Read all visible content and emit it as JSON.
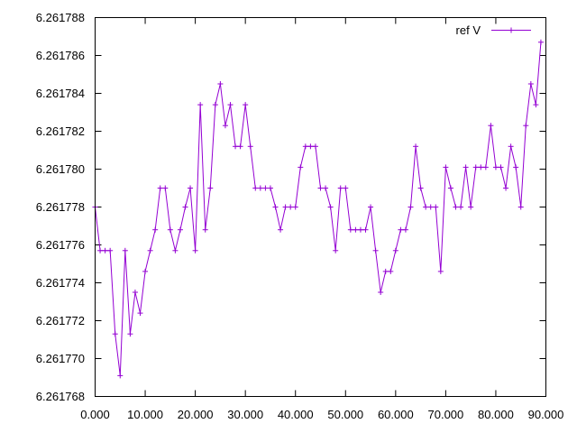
{
  "chart_data": {
    "type": "line",
    "title": "",
    "xlabel": "",
    "ylabel": "",
    "xlim": [
      0,
      90
    ],
    "ylim": [
      6.261768,
      6.261788
    ],
    "x_ticks": [
      "0.000",
      "10.000",
      "20.000",
      "30.000",
      "40.000",
      "50.000",
      "60.000",
      "70.000",
      "80.000",
      "90.000"
    ],
    "y_ticks": [
      "6.261768",
      "6.261770",
      "6.261772",
      "6.261774",
      "6.261776",
      "6.261778",
      "6.261780",
      "6.261782",
      "6.261784",
      "6.261786",
      "6.261788"
    ],
    "grid": false,
    "legend": {
      "position": "top-right"
    },
    "series": [
      {
        "name": "ref V",
        "color": "#9400d3",
        "marker": "plus",
        "x": [
          0,
          1,
          2,
          3,
          4,
          5,
          6,
          7,
          8,
          9,
          10,
          11,
          12,
          13,
          14,
          15,
          16,
          17,
          18,
          19,
          20,
          21,
          22,
          23,
          24,
          25,
          26,
          27,
          28,
          29,
          30,
          31,
          32,
          33,
          34,
          35,
          36,
          37,
          38,
          39,
          40,
          41,
          42,
          43,
          44,
          45,
          46,
          47,
          48,
          49,
          50,
          51,
          52,
          53,
          54,
          55,
          56,
          57,
          58,
          59,
          60,
          61,
          62,
          63,
          64,
          65,
          66,
          67,
          68,
          69,
          70,
          71,
          72,
          73,
          74,
          75,
          76,
          77,
          78,
          79,
          80,
          81,
          82,
          83,
          84,
          85,
          86,
          87,
          88,
          89
        ],
        "values": [
          6.261778,
          6.2617757,
          6.2617757,
          6.2617757,
          6.2617713,
          6.2617691,
          6.2617757,
          6.2617713,
          6.2617735,
          6.2617724,
          6.2617746,
          6.2617757,
          6.2617768,
          6.261779,
          6.261779,
          6.2617768,
          6.2617757,
          6.2617768,
          6.261778,
          6.261779,
          6.2617757,
          6.2617834,
          6.2617768,
          6.261779,
          6.2617834,
          6.2617845,
          6.2617823,
          6.2617834,
          6.2617812,
          6.2617812,
          6.2617834,
          6.2617812,
          6.261779,
          6.261779,
          6.261779,
          6.261779,
          6.261778,
          6.2617768,
          6.261778,
          6.261778,
          6.261778,
          6.2617801,
          6.2617812,
          6.2617812,
          6.2617812,
          6.261779,
          6.261779,
          6.261778,
          6.2617757,
          6.261779,
          6.261779,
          6.2617768,
          6.2617768,
          6.2617768,
          6.2617768,
          6.261778,
          6.2617757,
          6.2617735,
          6.2617746,
          6.2617746,
          6.2617757,
          6.2617768,
          6.2617768,
          6.261778,
          6.2617812,
          6.261779,
          6.261778,
          6.261778,
          6.261778,
          6.2617746,
          6.2617801,
          6.261779,
          6.261778,
          6.261778,
          6.2617801,
          6.261778,
          6.2617801,
          6.2617801,
          6.2617801,
          6.2617823,
          6.2617801,
          6.2617801,
          6.261779,
          6.2617812,
          6.2617801,
          6.261778,
          6.2617823,
          6.2617845,
          6.2617834,
          6.2617867
        ]
      }
    ]
  }
}
